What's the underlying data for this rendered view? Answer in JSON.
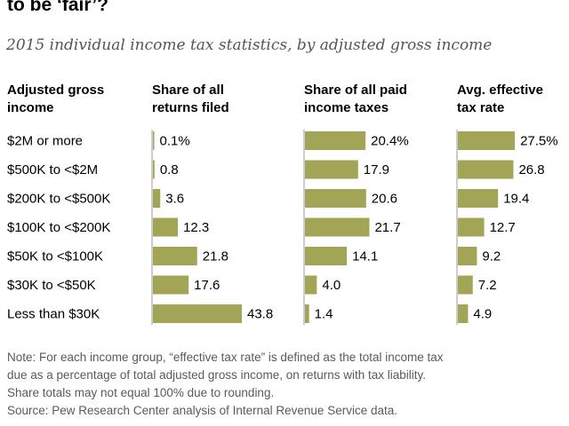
{
  "title": "to be ‘fair’?",
  "subtitle": "2015 individual income tax statistics, by adjusted gross income",
  "headers": {
    "category": [
      "Adjusted gross",
      "income"
    ],
    "returns": [
      "Share of all",
      "returns filed"
    ],
    "taxes": [
      "Share of all paid",
      "income taxes"
    ],
    "rate": [
      "Avg. effective",
      "tax rate"
    ]
  },
  "colors": {
    "bar": "#a3a556",
    "axis": "#9a9a9a"
  },
  "chart_data": {
    "type": "bar",
    "categories": [
      "$2M or more",
      "$500K to <$2M",
      "$200K to <$500K",
      "$100K to <$200K",
      "$50K to <$100K",
      "$30K to <$50K",
      "Less than $30K"
    ],
    "series": [
      {
        "name": "Share of all returns filed",
        "values": [
          0.1,
          0.8,
          3.6,
          12.3,
          21.8,
          17.6,
          43.8
        ],
        "labels": [
          "0.1%",
          "0.8",
          "3.6",
          "12.3",
          "21.8",
          "17.6",
          "43.8"
        ]
      },
      {
        "name": "Share of all paid income taxes",
        "values": [
          20.4,
          17.9,
          20.6,
          21.7,
          14.1,
          4.0,
          1.4
        ],
        "labels": [
          "20.4%",
          "17.9",
          "20.6",
          "21.7",
          "14.1",
          "4.0",
          "1.4"
        ]
      },
      {
        "name": "Avg. effective tax rate",
        "values": [
          27.5,
          26.8,
          19.4,
          12.7,
          9.2,
          7.2,
          4.9
        ],
        "labels": [
          "27.5%",
          "26.8",
          "19.4",
          "12.7",
          "9.2",
          "7.2",
          "4.9"
        ]
      }
    ]
  },
  "note": [
    "Note: For each income group, “effective tax rate” is defined as the total income tax",
    "due as a percentage of total adjusted gross income, on returns with tax liability.",
    "Share totals may not equal 100% due to rounding.",
    "Source: Pew Research Center analysis of Internal Revenue Service data."
  ]
}
